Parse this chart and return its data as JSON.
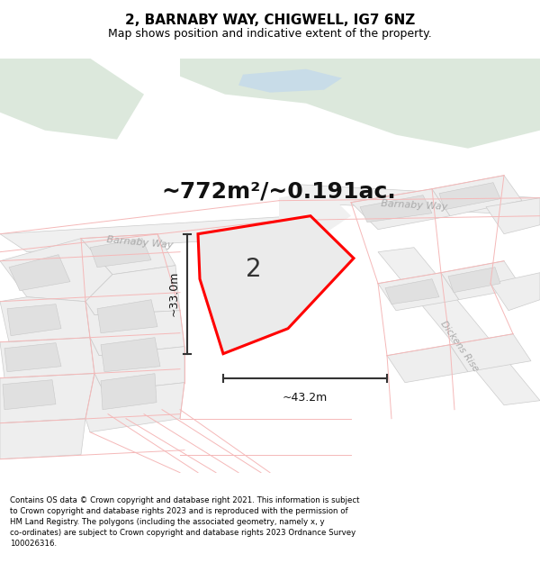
{
  "title": "2, BARNABY WAY, CHIGWELL, IG7 6NZ",
  "subtitle": "Map shows position and indicative extent of the property.",
  "area_text": "~772m²/~0.191ac.",
  "plot_number": "2",
  "width_label": "~43.2m",
  "height_label": "~33.0m",
  "footer": "Contains OS data © Crown copyright and database right 2021. This information is subject to Crown copyright and database rights 2023 and is reproduced with the permission of HM Land Registry. The polygons (including the associated geometry, namely x, y co-ordinates) are subject to Crown copyright and database rights 2023 Ordnance Survey 100026316.",
  "bg_color": "#ffffff",
  "map_bg": "#f7f7f7",
  "green_color": "#dce8dc",
  "blue_color": "#c8dce8",
  "road_fill": "#e8e8e8",
  "building_fill": "#e0e0e0",
  "building_inner": "#ebebeb",
  "building_edge": "#cccccc",
  "plot_fill": "#e8e8e8",
  "plot_border": "#ff0000",
  "road_line": "#f5b8b8",
  "road_label": "#aaaaaa",
  "road_label_size": 8,
  "annot_color": "#333333",
  "title_fontsize": 11,
  "subtitle_fontsize": 9,
  "area_fontsize": 18,
  "plot_label_fontsize": 20,
  "measure_fontsize": 9,
  "footer_fontsize": 6.2,
  "footer_color": "#000000"
}
